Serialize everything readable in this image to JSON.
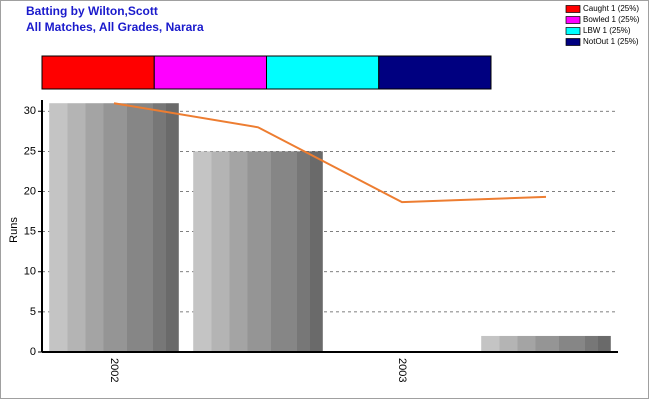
{
  "chart_data": [
    {
      "type": "stacked-bar-h",
      "series": [
        {
          "name": "Caught 1 (25%)",
          "color": "#ff0000",
          "values": [
            25
          ]
        },
        {
          "name": "Bowled 1 (25%)",
          "color": "#ff00ff",
          "values": [
            25
          ]
        },
        {
          "name": "LBW 1 (25%)",
          "color": "#00ffff",
          "values": [
            25
          ]
        },
        {
          "name": "NotOut 1 (25%)",
          "color": "#000080",
          "values": [
            25
          ]
        }
      ]
    },
    {
      "type": "bar",
      "title": "Batting by Wilton,Scott",
      "subtitle": "All Matches, All Grades, Narara",
      "ylabel": "Runs",
      "categories": [
        "2002",
        null,
        "2003",
        null
      ],
      "ylim": [
        0,
        31.4
      ],
      "yticks": [
        0,
        5,
        10,
        15,
        20,
        25,
        30
      ],
      "grid": true,
      "series": [
        {
          "type": "bar",
          "values": [
            31,
            25,
            0,
            2
          ]
        },
        {
          "type": "line",
          "color": "#ed7d31",
          "values": [
            31,
            28,
            18.67,
            19.33
          ]
        }
      ]
    }
  ]
}
